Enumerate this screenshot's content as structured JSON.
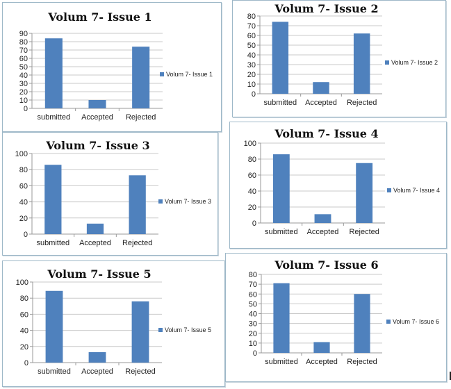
{
  "colors": {
    "bar": "#4f81bd",
    "grid": "#c9c9c9",
    "axis": "#9a9a9a"
  },
  "chart_data": [
    {
      "type": "bar",
      "title": "Volum 7- Issue 1",
      "categories": [
        "submitted",
        "Accepted",
        "Rejected"
      ],
      "series": [
        {
          "name": "Volum 7- Issue 1",
          "values": [
            84,
            10,
            74
          ]
        }
      ],
      "ylim": [
        0,
        90
      ],
      "ystep": 10,
      "grid": true,
      "legend": "right"
    },
    {
      "type": "bar",
      "title": "Volum 7- Issue 2",
      "categories": [
        "submitted",
        "Accepted",
        "Rejected"
      ],
      "series": [
        {
          "name": "Volum 7- Issue 2",
          "values": [
            74,
            12,
            62
          ]
        }
      ],
      "ylim": [
        0,
        80
      ],
      "ystep": 10,
      "grid": true,
      "legend": "right"
    },
    {
      "type": "bar",
      "title": "Volum 7- Issue 3",
      "categories": [
        "submitted",
        "Accepted",
        "Rejected"
      ],
      "series": [
        {
          "name": "Volum 7- Issue 3",
          "values": [
            86,
            13,
            73
          ]
        }
      ],
      "ylim": [
        0,
        100
      ],
      "ystep": 20,
      "grid": true,
      "legend": "right"
    },
    {
      "type": "bar",
      "title": "Volum 7- Issue 4",
      "categories": [
        "submitted",
        "Accepted",
        "Rejected"
      ],
      "series": [
        {
          "name": "Volum 7- Issue 4",
          "values": [
            86,
            11,
            75
          ]
        }
      ],
      "ylim": [
        0,
        100
      ],
      "ystep": 20,
      "grid": true,
      "legend": "right"
    },
    {
      "type": "bar",
      "title": "Volum 7- Issue 5",
      "categories": [
        "submitted",
        "Accepted",
        "Rejected"
      ],
      "series": [
        {
          "name": "Volum 7- Issue 5",
          "values": [
            89,
            13,
            76
          ]
        }
      ],
      "ylim": [
        0,
        100
      ],
      "ystep": 20,
      "grid": true,
      "legend": "right"
    },
    {
      "type": "bar",
      "title": "Volum 7- Issue 6",
      "categories": [
        "submitted",
        "Accepted",
        "Rejected"
      ],
      "series": [
        {
          "name": "Volum 7- Issue 6",
          "values": [
            71,
            11,
            60
          ]
        }
      ],
      "ylim": [
        0,
        80
      ],
      "ystep": 10,
      "grid": true,
      "legend": "right"
    }
  ]
}
